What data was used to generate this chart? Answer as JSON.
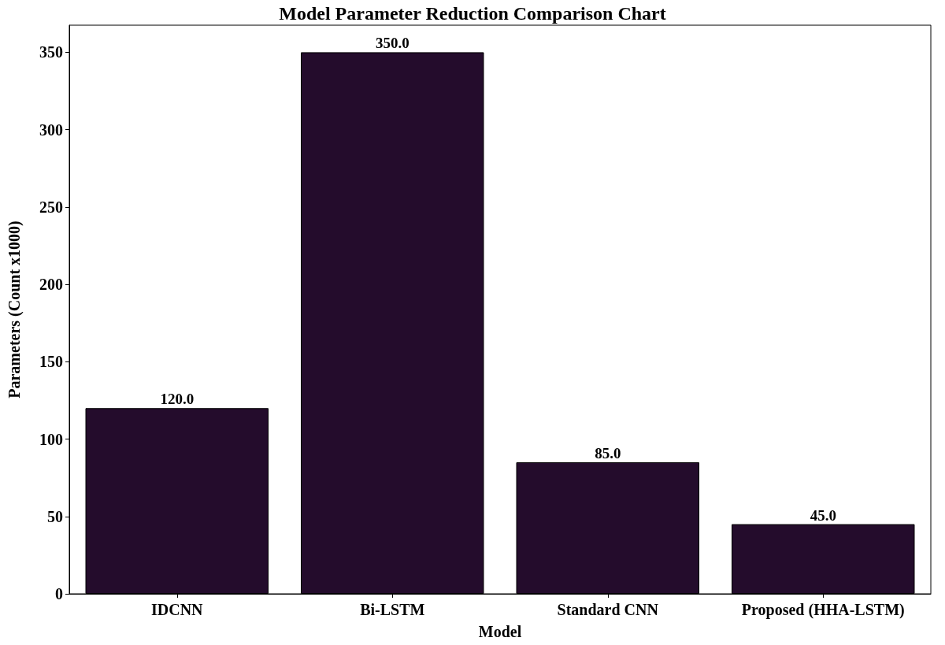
{
  "chart_data": {
    "type": "bar",
    "title": "Model Parameter Reduction Comparison Chart",
    "xlabel": "Model",
    "ylabel": "Parameters (Count x1000)",
    "categories": [
      "IDCNN",
      "Bi-LSTM",
      "Standard CNN",
      "Proposed (HHA-LSTM)"
    ],
    "values": [
      120.0,
      350.0,
      85.0,
      45.0
    ],
    "value_labels": [
      "120.0",
      "350.0",
      "85.0",
      "45.0"
    ],
    "color": "#240c2c",
    "ylim": [
      0,
      367.5
    ],
    "yticks": [
      0,
      50,
      100,
      150,
      200,
      250,
      300,
      350
    ],
    "grid": false
  }
}
